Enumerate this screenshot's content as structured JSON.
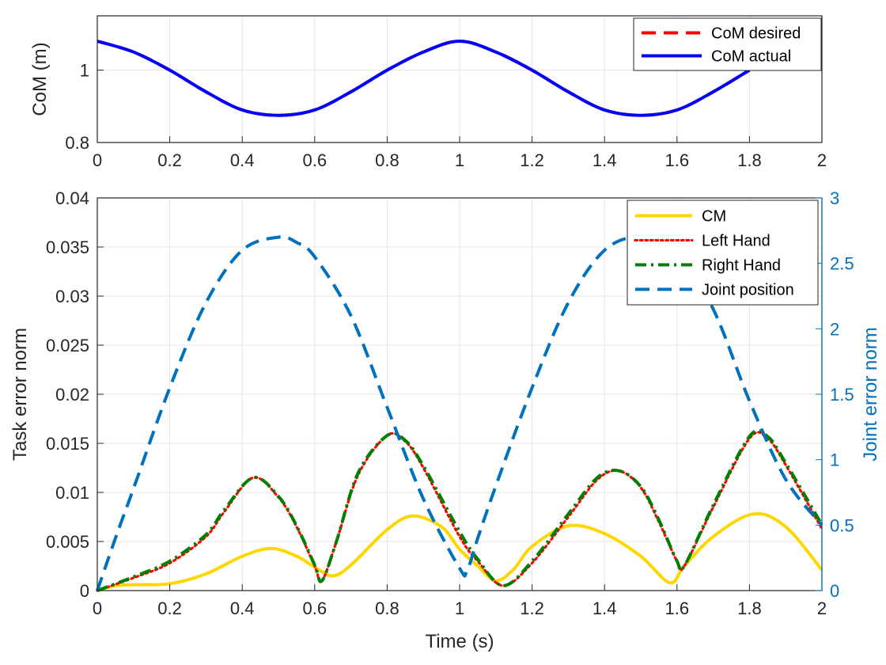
{
  "chart_data": [
    {
      "type": "line",
      "xlabel": "",
      "ylabel": "CoM (m)",
      "xlim": [
        0,
        2
      ],
      "ylim": [
        0.8,
        1.15
      ],
      "xticks": [
        "0",
        "0.2",
        "0.4",
        "0.6",
        "0.8",
        "1",
        "1.2",
        "1.4",
        "1.6",
        "1.8",
        "2"
      ],
      "yticks": [
        "0.8",
        "1"
      ],
      "grid": true,
      "legend": "top-right",
      "series": [
        {
          "name": "CoM desired",
          "color": "#FF0000",
          "style": "dashed",
          "x": [
            0,
            0.1,
            0.2,
            0.3,
            0.4,
            0.5,
            0.6,
            0.7,
            0.8,
            0.9,
            1.0,
            1.1,
            1.2,
            1.3,
            1.4,
            1.5,
            1.6,
            1.7,
            1.8
          ],
          "y": [
            1.08,
            1.05,
            1.0,
            0.94,
            0.89,
            0.875,
            0.89,
            0.94,
            1.0,
            1.05,
            1.08,
            1.05,
            1.0,
            0.94,
            0.89,
            0.875,
            0.89,
            0.94,
            1.0
          ]
        },
        {
          "name": "CoM actual",
          "color": "#0000FF",
          "style": "solid",
          "x": [
            0,
            0.1,
            0.2,
            0.3,
            0.4,
            0.5,
            0.6,
            0.7,
            0.8,
            0.9,
            1.0,
            1.1,
            1.2,
            1.3,
            1.4,
            1.5,
            1.6,
            1.7,
            1.8
          ],
          "y": [
            1.08,
            1.05,
            1.0,
            0.94,
            0.89,
            0.875,
            0.89,
            0.94,
            1.0,
            1.05,
            1.08,
            1.05,
            1.0,
            0.94,
            0.89,
            0.875,
            0.89,
            0.94,
            1.0
          ]
        }
      ]
    },
    {
      "type": "line",
      "xlabel": "Time (s)",
      "ylabel": "Task error norm",
      "ylabel_right": "Joint error norm",
      "xlim": [
        0,
        2
      ],
      "ylim": [
        0,
        0.04
      ],
      "ylim_right": [
        0,
        3
      ],
      "xticks": [
        "0",
        "0.2",
        "0.4",
        "0.6",
        "0.8",
        "1",
        "1.2",
        "1.4",
        "1.6",
        "1.8",
        "2"
      ],
      "yticks": [
        "0",
        "0.005",
        "0.01",
        "0.015",
        "0.02",
        "0.025",
        "0.03",
        "0.035",
        "0.04"
      ],
      "yticks_right": [
        "0",
        "0.5",
        "1",
        "1.5",
        "2",
        "2.5",
        "3"
      ],
      "grid": true,
      "legend": "top-right",
      "series": [
        {
          "name": "CM",
          "color": "#FFD700",
          "style": "solid",
          "axis": "left",
          "x": [
            0,
            0.05,
            0.1,
            0.2,
            0.3,
            0.4,
            0.48,
            0.55,
            0.6,
            0.65,
            0.7,
            0.8,
            0.87,
            0.95,
            1.0,
            1.05,
            1.1,
            1.15,
            1.2,
            1.3,
            1.4,
            1.5,
            1.58,
            1.62,
            1.7,
            1.81,
            1.9,
            2.0
          ],
          "y": [
            0,
            0.0005,
            0.0006,
            0.0007,
            0.0017,
            0.0035,
            0.0043,
            0.0035,
            0.0024,
            0.0015,
            0.0026,
            0.0062,
            0.0076,
            0.0065,
            0.0042,
            0.0025,
            0.001,
            0.0022,
            0.0045,
            0.0066,
            0.0058,
            0.0035,
            0.0008,
            0.0025,
            0.0055,
            0.0078,
            0.0065,
            0.0021
          ]
        },
        {
          "name": "Left Hand",
          "color": "#FF0000",
          "style": "dotted",
          "axis": "left",
          "x": [
            0,
            0.1,
            0.2,
            0.3,
            0.35,
            0.43,
            0.5,
            0.55,
            0.6,
            0.62,
            0.66,
            0.72,
            0.8,
            0.85,
            0.9,
            1.0,
            1.05,
            1.12,
            1.2,
            1.3,
            1.38,
            1.44,
            1.5,
            1.55,
            1.6,
            1.62,
            1.7,
            1.8,
            1.85,
            1.9,
            2.0
          ],
          "y": [
            0,
            0.0013,
            0.0028,
            0.0055,
            0.008,
            0.0115,
            0.0095,
            0.0065,
            0.0025,
            0.001,
            0.005,
            0.0118,
            0.0158,
            0.0152,
            0.0125,
            0.0055,
            0.003,
            0.0005,
            0.0028,
            0.0075,
            0.0113,
            0.0122,
            0.0105,
            0.007,
            0.003,
            0.0025,
            0.0085,
            0.0155,
            0.0155,
            0.0128,
            0.0063
          ]
        },
        {
          "name": "Right Hand",
          "color": "#008000",
          "style": "dashdot",
          "axis": "left",
          "x": [
            0,
            0.1,
            0.2,
            0.3,
            0.35,
            0.43,
            0.5,
            0.55,
            0.6,
            0.62,
            0.66,
            0.72,
            0.8,
            0.85,
            0.9,
            1.0,
            1.05,
            1.12,
            1.2,
            1.3,
            1.38,
            1.44,
            1.5,
            1.55,
            1.6,
            1.62,
            1.7,
            1.8,
            1.85,
            1.9,
            2.0
          ],
          "y": [
            0,
            0.0014,
            0.003,
            0.0057,
            0.0082,
            0.0115,
            0.0096,
            0.0066,
            0.0026,
            0.001,
            0.005,
            0.012,
            0.0158,
            0.0153,
            0.0127,
            0.006,
            0.0032,
            0.0005,
            0.003,
            0.0078,
            0.0115,
            0.0122,
            0.0106,
            0.0072,
            0.003,
            0.0025,
            0.0087,
            0.0157,
            0.0157,
            0.013,
            0.0067
          ]
        },
        {
          "name": "Joint position",
          "color": "#0072BD",
          "style": "dashed",
          "axis": "right",
          "x": [
            0,
            0.05,
            0.1,
            0.2,
            0.3,
            0.4,
            0.5,
            0.55,
            0.6,
            0.7,
            0.8,
            0.9,
            1.0,
            1.02,
            1.05,
            1.1,
            1.2,
            1.3,
            1.4,
            1.5,
            1.6,
            1.7,
            1.8,
            1.9,
            2.0
          ],
          "y": [
            0,
            0.4,
            0.78,
            1.55,
            2.2,
            2.6,
            2.7,
            2.66,
            2.55,
            2.1,
            1.4,
            0.7,
            0.17,
            0.15,
            0.4,
            0.8,
            1.55,
            2.2,
            2.6,
            2.7,
            2.58,
            2.15,
            1.45,
            0.85,
            0.5
          ]
        }
      ]
    }
  ]
}
